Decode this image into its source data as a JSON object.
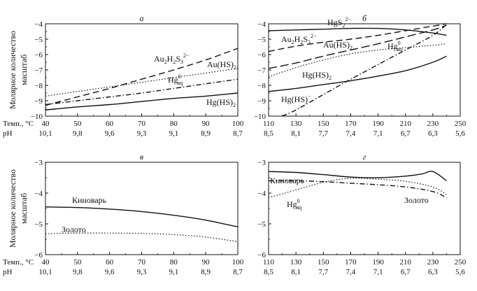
{
  "y_axis_label": "Молярное количество масштаб",
  "x_label_temp": "Темп., °C",
  "x_label_ph": "pH",
  "chart_data": [
    {
      "panel_label": "а",
      "type": "line",
      "xlim": [
        40,
        100
      ],
      "ylim": [
        -10,
        -4
      ],
      "x_ticks": [
        40,
        50,
        60,
        70,
        80,
        90,
        100
      ],
      "ph_ticks": [
        "10,1",
        "9,8",
        "9,6",
        "9,3",
        "9,1",
        "8,9",
        "8,7"
      ],
      "y_ticks": [
        -4,
        -5,
        -6,
        -7,
        -8,
        -9,
        -10
      ],
      "series": [
        {
          "name": "Au2H2S3 2−",
          "name_parts": {
            "pre": "Au",
            "s1": "2",
            "mid": "H",
            "s2": "2",
            "mid2": "S",
            "s3": "3",
            "sup": "2−"
          },
          "style": "dash",
          "x": [
            40,
            50,
            60,
            70,
            80,
            90,
            100
          ],
          "y": [
            -9.3,
            -8.75,
            -8.2,
            -7.6,
            -7.0,
            -6.35,
            -5.6
          ]
        },
        {
          "name": "Au(HS)2",
          "name_parts": {
            "pre": "Au(HS)",
            "s1": "2"
          },
          "style": "dot",
          "x": [
            40,
            50,
            60,
            70,
            80,
            90,
            100
          ],
          "y": [
            -8.7,
            -8.4,
            -8.1,
            -7.8,
            -7.5,
            -7.2,
            -6.9
          ]
        },
        {
          "name": "Hg0aq",
          "name_parts": {
            "pre": "Hg",
            "sup": "0",
            "sub": "aq"
          },
          "style": "dashdot",
          "x": [
            40,
            50,
            60,
            70,
            80,
            90,
            100
          ],
          "y": [
            -9.25,
            -9.0,
            -8.75,
            -8.5,
            -8.2,
            -7.9,
            -7.6
          ]
        },
        {
          "name": "Hg(HS)2",
          "name_parts": {
            "pre": "Hg(HS)",
            "s1": "2"
          },
          "style": "solid",
          "x": [
            40,
            50,
            60,
            70,
            80,
            90,
            100
          ],
          "y": [
            -9.6,
            -9.4,
            -9.25,
            -9.05,
            -8.85,
            -8.7,
            -8.5
          ]
        }
      ]
    },
    {
      "panel_label": "б",
      "type": "line",
      "xlim": [
        110,
        250
      ],
      "ylim": [
        -10,
        -4
      ],
      "x_ticks": [
        110,
        130,
        150,
        170,
        190,
        210,
        230,
        250
      ],
      "ph_ticks": [
        "8,5",
        "8,1",
        "7,7",
        "7,4",
        "7,1",
        "6,7",
        "6,3",
        "5,6"
      ],
      "y_ticks": [
        -4,
        -5,
        -6,
        -7,
        -8,
        -9,
        -10
      ],
      "series": [
        {
          "name": "HgS2 2−",
          "name_parts": {
            "pre": "HgS",
            "s1": "2",
            "sup": "2−"
          },
          "style": "solid",
          "x": [
            110,
            130,
            150,
            170,
            190,
            210,
            230,
            240
          ],
          "y": [
            -4.45,
            -4.4,
            -4.35,
            -4.3,
            -4.3,
            -4.4,
            -4.6,
            -4.75
          ]
        },
        {
          "name": "Au2H2S3 2−",
          "name_parts": {
            "pre": "Au",
            "s1": "2",
            "mid": "H",
            "s2": "2",
            "mid2": "S",
            "s3": "3",
            "sup": "2−"
          },
          "style": "dash",
          "x": [
            110,
            130,
            150,
            170,
            190,
            210,
            230,
            240
          ],
          "y": [
            -5.8,
            -5.45,
            -5.2,
            -5.0,
            -4.75,
            -4.45,
            -4.15,
            -4.0
          ]
        },
        {
          "name": "Au(HS)2",
          "name_parts": {
            "pre": "Au(HS)",
            "s1": "2"
          },
          "style": "dot",
          "x": [
            110,
            130,
            150,
            170,
            190,
            210,
            230,
            240
          ],
          "y": [
            -7.45,
            -6.85,
            -6.35,
            -5.95,
            -5.7,
            -5.55,
            -5.4,
            -5.3
          ]
        },
        {
          "name": "Hg0aq",
          "name_parts": {
            "pre": "Hg",
            "sup": "0",
            "sub": "aq"
          },
          "style": "longdash",
          "x": [
            110,
            130,
            150,
            170,
            190,
            210,
            230,
            240
          ],
          "y": [
            -6.9,
            -6.55,
            -6.1,
            -5.7,
            -5.3,
            -4.85,
            -4.4,
            -4.1
          ]
        },
        {
          "name": "Hg(HS)2",
          "name_parts": {
            "pre": "Hg(HS)",
            "s1": "2"
          },
          "style": "solid",
          "x": [
            110,
            130,
            150,
            170,
            190,
            210,
            230,
            240
          ],
          "y": [
            -8.4,
            -8.2,
            -7.95,
            -7.7,
            -7.4,
            -7.05,
            -6.5,
            -6.1
          ]
        },
        {
          "name": "Hg(HS)−",
          "name_parts": {
            "pre": "Hg(HS)",
            "sup": "−"
          },
          "style": "dashdot",
          "x": [
            120,
            130,
            150,
            170,
            190,
            210,
            230,
            240
          ],
          "y": [
            -10.0,
            -9.6,
            -8.6,
            -7.6,
            -6.65,
            -5.7,
            -4.75,
            -4.05
          ]
        }
      ]
    },
    {
      "panel_label": "в",
      "type": "line",
      "xlim": [
        40,
        100
      ],
      "ylim": [
        -6,
        -3
      ],
      "x_ticks": [
        40,
        50,
        60,
        70,
        80,
        90,
        100
      ],
      "ph_ticks": [
        "10,1",
        "9,8",
        "9,6",
        "9,3",
        "9,1",
        "8,9",
        "8,7"
      ],
      "y_ticks": [
        -3,
        -4,
        -5,
        -6
      ],
      "series": [
        {
          "name": "Киноварь",
          "style": "solid",
          "x": [
            40,
            50,
            60,
            70,
            80,
            90,
            100
          ],
          "y": [
            -4.45,
            -4.47,
            -4.52,
            -4.6,
            -4.72,
            -4.88,
            -5.1
          ]
        },
        {
          "name": "Золото",
          "style": "dot",
          "x": [
            40,
            50,
            60,
            70,
            80,
            90,
            100
          ],
          "y": [
            -5.32,
            -5.3,
            -5.3,
            -5.31,
            -5.35,
            -5.43,
            -5.58
          ]
        }
      ]
    },
    {
      "panel_label": "г",
      "type": "line",
      "xlim": [
        110,
        250
      ],
      "ylim": [
        -6,
        -3
      ],
      "x_ticks": [
        110,
        130,
        150,
        170,
        190,
        210,
        230,
        250
      ],
      "ph_ticks": [
        "8,5",
        "8,1",
        "7,7",
        "7,4",
        "7,1",
        "6,7",
        "6,3",
        "5,6"
      ],
      "y_ticks": [
        -3,
        -4,
        -5,
        -6
      ],
      "series": [
        {
          "name": "Киноварь",
          "style": "solid",
          "x": [
            110,
            130,
            150,
            170,
            190,
            210,
            222,
            230,
            240
          ],
          "y": [
            -3.3,
            -3.33,
            -3.4,
            -3.48,
            -3.5,
            -3.45,
            -3.38,
            -3.3,
            -3.6
          ]
        },
        {
          "name": "Золото",
          "style": "dashdot",
          "x": [
            110,
            130,
            150,
            170,
            190,
            210,
            230,
            240
          ],
          "y": [
            -3.6,
            -3.6,
            -3.63,
            -3.68,
            -3.73,
            -3.8,
            -3.95,
            -4.15
          ]
        },
        {
          "name": "Hg0aq",
          "name_parts": {
            "pre": "Hg",
            "sup": "0",
            "sub": "aq"
          },
          "style": "dot",
          "x": [
            110,
            130,
            150,
            170,
            190,
            210,
            230,
            240
          ],
          "y": [
            -4.15,
            -3.9,
            -3.65,
            -3.52,
            -3.55,
            -3.62,
            -3.8,
            -4.05
          ]
        }
      ]
    }
  ]
}
